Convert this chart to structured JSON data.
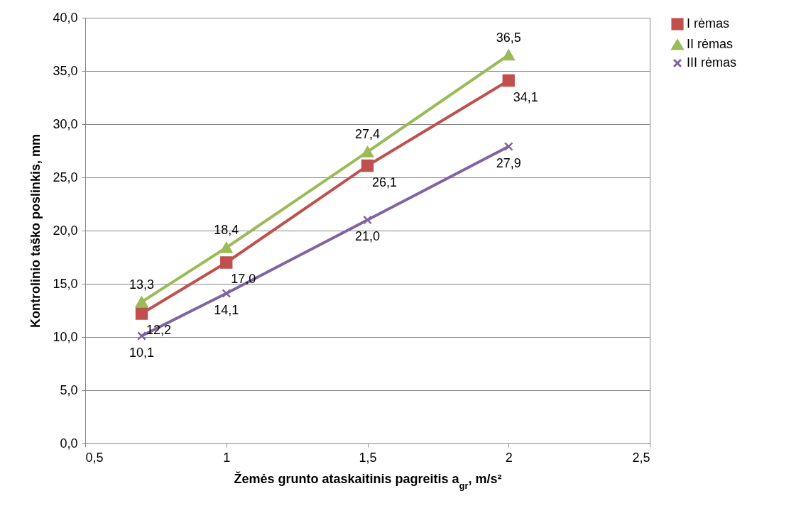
{
  "chart_data": {
    "type": "line",
    "xlabel": "Žemės grunto ataskaitinis pagreitis a$_{gr}$, m/s²",
    "ylabel": "Kontrolinio taško poslinkis, mm",
    "x": [
      0.7,
      1,
      1.5,
      2
    ],
    "series": [
      {
        "name": "I rėmas",
        "color": "#c0504d",
        "marker": "square",
        "values": [
          12.2,
          17.0,
          26.1,
          34.1
        ],
        "value_labels": [
          "12,2",
          "17,0",
          "26,1",
          "34,1"
        ]
      },
      {
        "name": "II rėmas",
        "color": "#9bbb59",
        "marker": "triangle",
        "values": [
          13.3,
          18.4,
          27.4,
          36.5
        ],
        "value_labels": [
          "13,3",
          "18,4",
          "27,4",
          "36,5"
        ]
      },
      {
        "name": "III rėmas",
        "color": "#8064a2",
        "marker": "cross",
        "values": [
          10.1,
          14.1,
          21.0,
          27.9
        ],
        "value_labels": [
          "10,1",
          "14,1",
          "21,0",
          "27,9"
        ]
      }
    ],
    "xlim": [
      0.5,
      2.5
    ],
    "xticks": [
      {
        "value": 0.5,
        "label": "0,5"
      },
      1,
      {
        "value": 1.5,
        "label": "1,5"
      },
      2,
      {
        "value": 2.5,
        "label": "2,5"
      }
    ],
    "ylim": [
      0,
      40
    ],
    "yticks": [
      {
        "value": 0,
        "label": "0,0"
      },
      {
        "value": 5,
        "label": "5,0"
      },
      {
        "value": 10,
        "label": "10,0"
      },
      {
        "value": 15,
        "label": "15,0"
      },
      {
        "value": 20,
        "label": "20,0"
      },
      {
        "value": 25,
        "label": "25,0"
      },
      {
        "value": 30,
        "label": "30,0"
      },
      {
        "value": 35,
        "label": "35,0"
      },
      {
        "value": 40,
        "label": "40,0"
      }
    ],
    "grid": "y",
    "legend": "right",
    "line_style": "solid"
  }
}
